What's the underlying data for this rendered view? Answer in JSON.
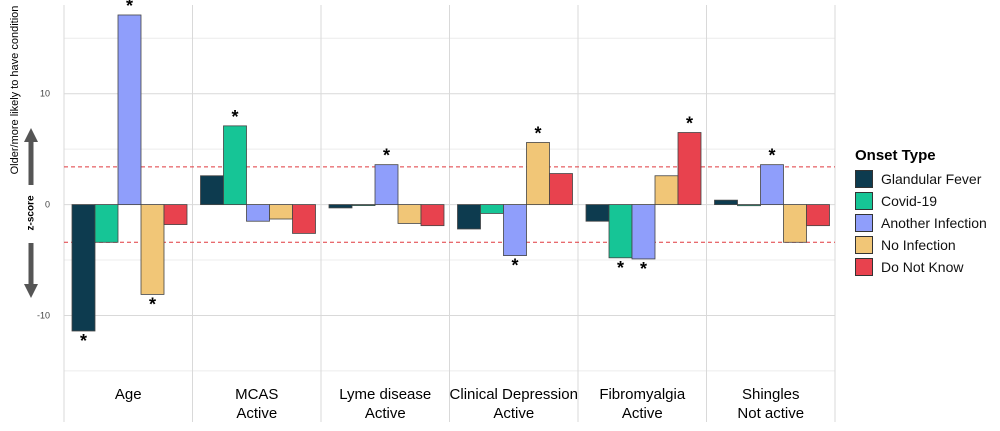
{
  "chart_data": {
    "type": "bar",
    "title": "",
    "ylabel_top": "Older/more likely to have condition",
    "ylabel_mid": "z-score",
    "xlabel": "",
    "ylim": [
      -16,
      18
    ],
    "yticks": [
      -10,
      0,
      10
    ],
    "significance_threshold": 3.4,
    "significance_marker": "*",
    "categories": [
      {
        "line1": "Age",
        "line2": ""
      },
      {
        "line1": "MCAS",
        "line2": "Active"
      },
      {
        "line1": "Lyme disease",
        "line2": "Active"
      },
      {
        "line1": "Clinical Depression",
        "line2": "Active"
      },
      {
        "line1": "Fibromyalgia",
        "line2": "Active"
      },
      {
        "line1": "Shingles",
        "line2": "Not active"
      }
    ],
    "series": [
      {
        "name": "Glandular Fever",
        "color": "#0d3b4f",
        "values": [
          -11.4,
          2.6,
          -0.3,
          -2.2,
          -1.5,
          0.4
        ],
        "significant": [
          true,
          false,
          false,
          false,
          false,
          false
        ]
      },
      {
        "name": "Covid-19",
        "color": "#16c596",
        "values": [
          -3.4,
          7.1,
          0.0,
          -0.8,
          -4.8,
          -0.1
        ],
        "significant": [
          false,
          true,
          false,
          false,
          true,
          false
        ]
      },
      {
        "name": "Another Infection",
        "color": "#8f9efb",
        "values": [
          17.1,
          -1.5,
          3.6,
          -4.6,
          -4.9,
          3.6
        ],
        "significant": [
          true,
          false,
          true,
          true,
          true,
          true
        ]
      },
      {
        "name": "No Infection",
        "color": "#f1c677",
        "values": [
          -8.1,
          -1.3,
          -1.7,
          5.6,
          2.6,
          -3.4
        ],
        "significant": [
          true,
          false,
          false,
          true,
          false,
          false
        ]
      },
      {
        "name": "Do Not Know",
        "color": "#e8424e",
        "values": [
          -1.8,
          -2.6,
          -1.9,
          2.8,
          6.5,
          -1.9
        ],
        "significant": [
          false,
          false,
          false,
          false,
          true,
          false
        ]
      }
    ],
    "legend": {
      "title": "Onset Type",
      "position": "right"
    }
  }
}
